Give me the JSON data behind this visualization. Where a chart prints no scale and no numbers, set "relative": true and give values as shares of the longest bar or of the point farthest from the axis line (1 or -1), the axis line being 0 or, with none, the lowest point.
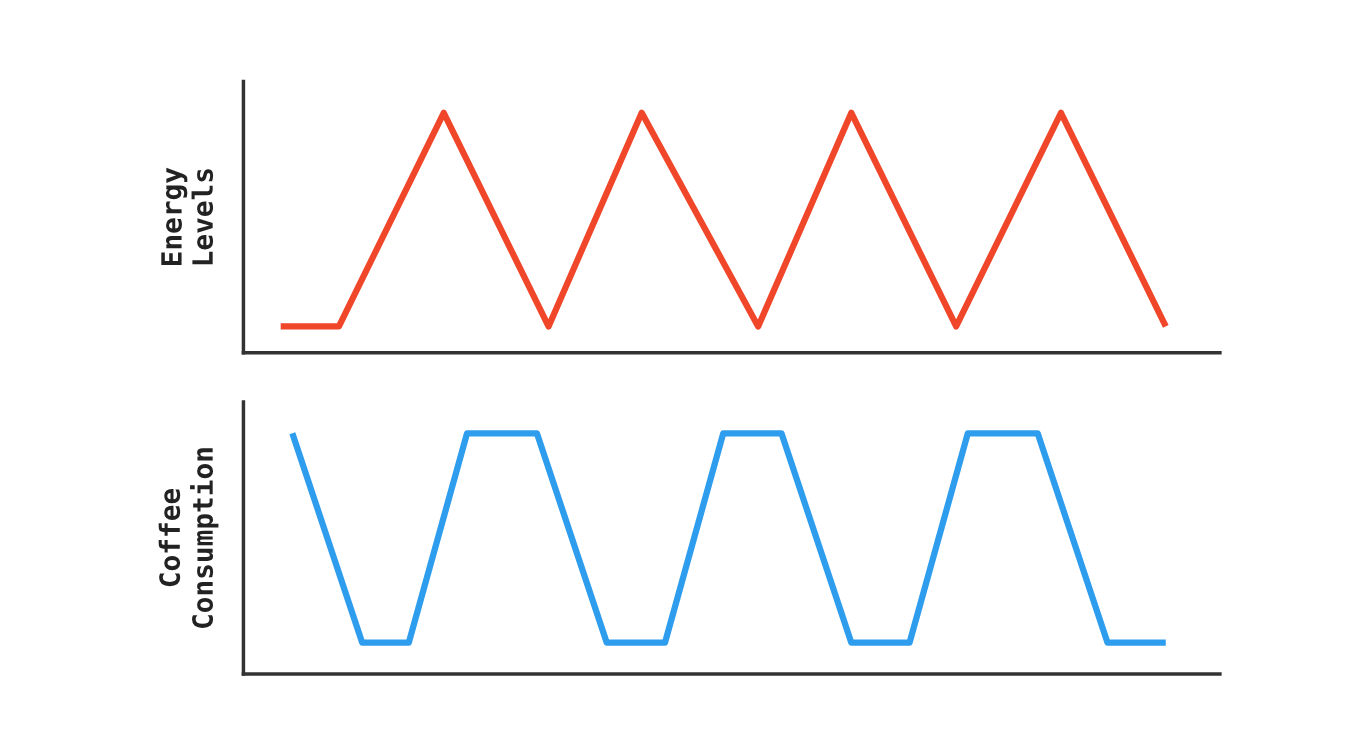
{
  "chart_data": [
    {
      "type": "line",
      "ylabel": "Energy\nLevels",
      "relative": true,
      "tick_labels": false,
      "line_style": "solid",
      "marker": "none",
      "categories": [
        null,
        null,
        null,
        null,
        null,
        null,
        null,
        null,
        null,
        null,
        null,
        null,
        null,
        null,
        null,
        null,
        null,
        null,
        null,
        null,
        null,
        null,
        null,
        null,
        null,
        null,
        null,
        null,
        null,
        null,
        null,
        null,
        null,
        null,
        null,
        null,
        null,
        null,
        null,
        null,
        null,
        null,
        null,
        null,
        null,
        null,
        null,
        null,
        null,
        null,
        null,
        null,
        null,
        null,
        null,
        null,
        null,
        null,
        null,
        null,
        null,
        null,
        null,
        null,
        null,
        null,
        null,
        null,
        null,
        null,
        null,
        null,
        null,
        null,
        null,
        null,
        null
      ],
      "series": [
        {
          "color": "#f0462a",
          "values": [
            0.11,
            null,
            null,
            null,
            null,
            0.11,
            null,
            null,
            null,
            null,
            null,
            null,
            null,
            null,
            1,
            null,
            null,
            null,
            null,
            null,
            null,
            null,
            null,
            0.11,
            null,
            null,
            null,
            null,
            null,
            null,
            null,
            1,
            null,
            null,
            null,
            null,
            null,
            null,
            null,
            null,
            null,
            0.11,
            null,
            null,
            null,
            null,
            null,
            null,
            null,
            1,
            null,
            null,
            null,
            null,
            null,
            null,
            null,
            null,
            0.11,
            null,
            null,
            null,
            null,
            null,
            null,
            null,
            null,
            1,
            null,
            null,
            null,
            null,
            null,
            null,
            null,
            null,
            0.11
          ]
        }
      ]
    },
    {
      "type": "line",
      "ylabel": "Coffee\nConsumption",
      "relative": true,
      "tick_labels": false,
      "line_style": "solid",
      "marker": "none",
      "categories": [
        null,
        null,
        null,
        null,
        null,
        null,
        null,
        null,
        null,
        null,
        null,
        null,
        null,
        null,
        null,
        null,
        null,
        null,
        null,
        null,
        null,
        null,
        null,
        null,
        null,
        null,
        null,
        null,
        null,
        null,
        null,
        null,
        null,
        null,
        null,
        null,
        null,
        null,
        null,
        null,
        null,
        null,
        null,
        null,
        null,
        null,
        null,
        null,
        null,
        null,
        null,
        null,
        null,
        null,
        null,
        null,
        null,
        null,
        null,
        null,
        null,
        null,
        null,
        null,
        null,
        null,
        null,
        null,
        null,
        null,
        null,
        null,
        null,
        null,
        null,
        null,
        null
      ],
      "series": [
        {
          "color": "#2f9ded",
          "values": [
            null,
            1,
            null,
            null,
            null,
            null,
            null,
            0.13,
            null,
            null,
            null,
            0.13,
            null,
            null,
            null,
            null,
            1,
            null,
            null,
            null,
            null,
            null,
            1,
            null,
            null,
            null,
            null,
            null,
            0.13,
            null,
            null,
            null,
            null,
            0.13,
            null,
            null,
            null,
            null,
            1,
            null,
            null,
            null,
            null,
            1,
            null,
            null,
            null,
            null,
            null,
            0.13,
            null,
            null,
            null,
            null,
            0.13,
            null,
            null,
            null,
            null,
            1,
            null,
            null,
            null,
            null,
            null,
            1,
            null,
            null,
            null,
            null,
            null,
            0.13,
            null,
            null,
            null,
            null,
            0.13
          ]
        }
      ]
    }
  ]
}
